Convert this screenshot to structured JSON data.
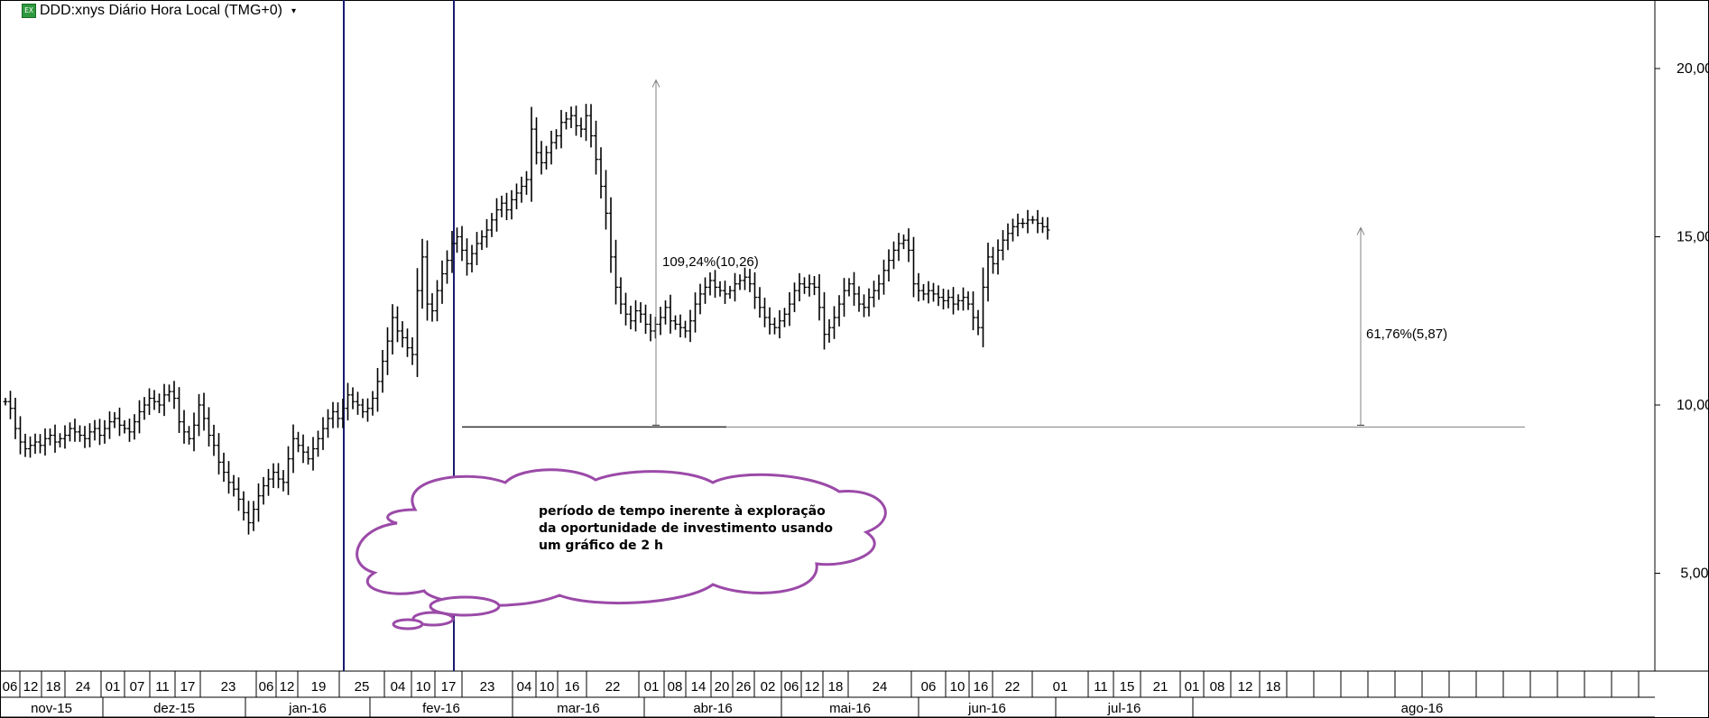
{
  "header": {
    "symbol_icon": "chart-symbol-icon",
    "title": "DDD:xnys Diário Hora Local (TMG+0)",
    "dropdown_icon": "chevron-down-icon"
  },
  "annotations": {
    "rise_label": "109,24%(10,26)",
    "second_label": "61,76%(5,87)",
    "cloud_lines": [
      "período de tempo inerente à exploração",
      "da oportunidade de investimento usando",
      "um gráfico de 2 h"
    ]
  },
  "colors": {
    "bars": "#000000",
    "vertical_lines": "#1a1a6e",
    "cloud": "#9b4aa8",
    "measure": "#808080"
  },
  "chart_data": {
    "type": "bar",
    "ylim": [
      2,
      22
    ],
    "y_ticks": [
      "20,00",
      "15,00",
      "10,00",
      "5,00"
    ],
    "y_tick_values": [
      20,
      15,
      10,
      5
    ],
    "day_labels": [
      "06",
      "12",
      "18",
      "24",
      "01",
      "07",
      "11",
      "17",
      "23",
      "06",
      "12",
      "19",
      "25",
      "04",
      "10",
      "17",
      "23",
      "04",
      "10",
      "16",
      "22",
      "01",
      "08",
      "14",
      "20",
      "26",
      "02",
      "06",
      "12",
      "18",
      "24",
      "06",
      "10",
      "16",
      "22",
      "01",
      "11",
      "15",
      "21",
      "01",
      "08",
      "12",
      "18"
    ],
    "month_labels": [
      "nov-15",
      "dez-15",
      "jan-16",
      "fev-16",
      "mar-16",
      "abr-16",
      "mai-16",
      "jun-16",
      "jul-16",
      "ago-16"
    ],
    "series": [
      {
        "values": [
          10.1,
          9.9,
          9.3,
          8.9,
          8.7,
          8.8,
          8.9,
          8.8,
          9.0,
          9.1,
          8.9,
          9.0,
          9.1,
          9.3,
          9.2,
          9.1,
          9.0,
          9.2,
          9.3,
          9.1,
          9.3,
          9.5,
          9.6,
          9.4,
          9.3,
          9.2,
          9.5,
          9.8,
          10.0,
          10.2,
          10.1,
          10.0,
          10.3,
          10.4,
          10.2,
          9.5,
          9.2,
          9.0,
          9.4,
          10.0,
          9.6,
          9.1,
          8.8,
          8.3,
          8.0,
          7.7,
          7.5,
          7.2,
          6.8,
          6.5,
          6.9,
          7.3,
          7.6,
          7.8,
          8.0,
          7.8,
          7.7,
          8.4,
          9.0,
          8.8,
          8.6,
          8.4,
          8.7,
          9.0,
          9.3,
          9.6,
          9.8,
          9.6,
          9.9,
          10.3,
          10.1,
          10.0,
          9.8,
          9.9,
          10.2,
          10.7,
          11.3,
          11.9,
          12.6,
          12.2,
          12.0,
          11.7,
          11.5,
          13.4,
          14.4,
          13.0,
          12.8,
          13.4,
          13.9,
          14.3,
          14.8,
          15.0,
          14.6,
          14.2,
          14.5,
          14.8,
          15.0,
          15.2,
          15.5,
          15.8,
          16.0,
          15.8,
          16.1,
          16.3,
          16.5,
          16.7,
          18.2,
          17.5,
          17.2,
          17.5,
          17.8,
          18.0,
          18.4,
          18.5,
          18.6,
          18.3,
          18.2,
          18.6,
          18.0,
          17.3,
          16.5,
          15.7,
          14.4,
          13.5,
          13.0,
          12.7,
          12.5,
          12.8,
          12.7,
          12.4,
          12.2,
          12.4,
          12.6,
          12.9,
          12.5,
          12.4,
          12.3,
          12.2,
          12.5,
          13.0,
          13.3,
          13.5,
          13.7,
          13.5,
          13.4,
          13.3,
          13.4,
          13.6,
          13.7,
          13.8,
          13.6,
          13.2,
          12.9,
          12.6,
          12.4,
          12.3,
          12.5,
          12.7,
          13.0,
          13.4,
          13.6,
          13.5,
          13.6,
          13.5,
          12.9,
          12.1,
          12.3,
          12.6,
          13.0,
          13.4,
          13.6,
          13.3,
          13.0,
          12.9,
          13.2,
          13.4,
          13.6,
          14.0,
          14.3,
          14.6,
          14.8,
          14.9,
          14.6,
          13.6,
          13.4,
          13.3,
          13.4,
          13.3,
          13.2,
          13.1,
          13.2,
          13.0,
          13.1,
          13.2,
          13.0,
          12.6,
          12.3,
          13.5,
          14.4,
          14.2,
          14.6,
          14.9,
          15.1,
          15.3,
          15.4,
          15.4,
          15.5,
          15.5,
          15.4,
          15.3,
          15.2
        ]
      }
    ],
    "measurements": [
      {
        "label": "109,24%(10,26)",
        "from": 9.4,
        "to": 19.66
      },
      {
        "label": "61,76%(5,87)",
        "from": 9.4,
        "to": 15.27
      }
    ],
    "baseline": 9.4,
    "grid": false
  }
}
